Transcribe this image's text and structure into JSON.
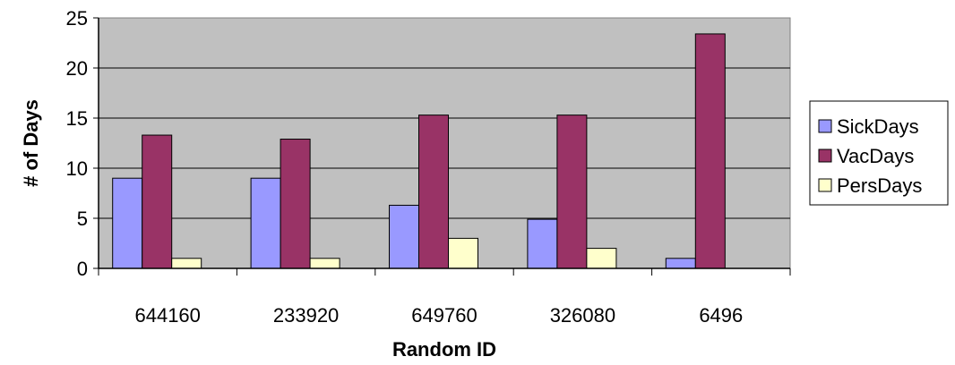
{
  "chart_data": {
    "type": "bar",
    "xlabel": "Random ID",
    "ylabel": "# of Days",
    "categories": [
      "644160",
      "233920",
      "649760",
      "326080",
      "6496"
    ],
    "series": [
      {
        "name": "SickDays",
        "color": "#9999ff",
        "values": [
          9,
          9,
          6.3,
          4.9,
          1
        ]
      },
      {
        "name": "VacDays",
        "color": "#993366",
        "values": [
          13.3,
          12.9,
          15.3,
          15.3,
          23.4
        ]
      },
      {
        "name": "PersDays",
        "color": "#ffffcc",
        "values": [
          1,
          1,
          3,
          2,
          0
        ]
      }
    ],
    "ylim": [
      0,
      25
    ],
    "yticks": [
      "0",
      "5",
      "10",
      "15",
      "20",
      "25"
    ],
    "grid": true,
    "plot_background": "#c0c0c0",
    "legend_position": "right"
  }
}
